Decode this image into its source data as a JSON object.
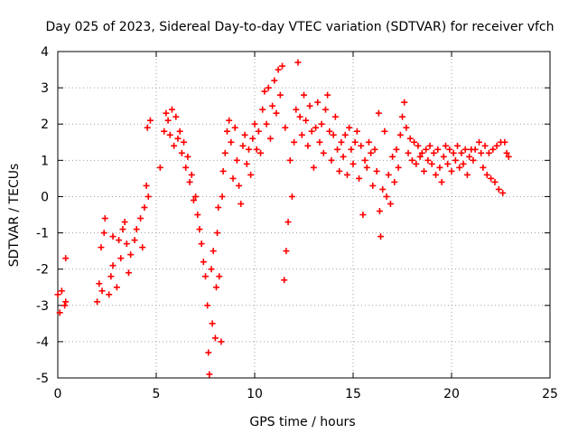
{
  "chart_data": {
    "type": "scatter",
    "title": "Day 025 of 2023, Sidereal Day-to-day VTEC variation (SDTVAR) for receiver vfch",
    "xlabel": "GPS time / hours",
    "ylabel": "SDTVAR / TECUs",
    "xlim": [
      0,
      25
    ],
    "ylim": [
      -5,
      4
    ],
    "xticks": [
      0,
      5,
      10,
      15,
      20,
      25
    ],
    "yticks": [
      -5,
      -4,
      -3,
      -2,
      -1,
      0,
      1,
      2,
      3,
      4
    ],
    "grid": true,
    "marker": "+",
    "color": "#ff0000",
    "series": [
      {
        "name": "SDTVAR",
        "points": [
          [
            0.0,
            -2.7
          ],
          [
            0.1,
            -3.2
          ],
          [
            0.2,
            -2.6
          ],
          [
            0.35,
            -3.0
          ],
          [
            0.4,
            -1.7
          ],
          [
            0.4,
            -2.9
          ],
          [
            2.0,
            -2.9
          ],
          [
            2.1,
            -2.4
          ],
          [
            2.2,
            -1.4
          ],
          [
            2.25,
            -2.6
          ],
          [
            2.35,
            -1.0
          ],
          [
            2.4,
            -0.6
          ],
          [
            2.6,
            -2.7
          ],
          [
            2.7,
            -2.2
          ],
          [
            2.8,
            -1.9
          ],
          [
            2.8,
            -1.1
          ],
          [
            3.0,
            -2.5
          ],
          [
            3.1,
            -1.2
          ],
          [
            3.2,
            -1.7
          ],
          [
            3.3,
            -0.9
          ],
          [
            3.4,
            -0.7
          ],
          [
            3.5,
            -1.3
          ],
          [
            3.6,
            -2.1
          ],
          [
            3.7,
            -1.6
          ],
          [
            3.9,
            -1.2
          ],
          [
            4.0,
            -0.9
          ],
          [
            4.2,
            -0.6
          ],
          [
            4.3,
            -1.4
          ],
          [
            4.4,
            -0.3
          ],
          [
            4.5,
            0.3
          ],
          [
            4.55,
            1.9
          ],
          [
            4.6,
            0.0
          ],
          [
            4.7,
            2.1
          ],
          [
            5.2,
            0.8
          ],
          [
            5.4,
            1.8
          ],
          [
            5.5,
            2.3
          ],
          [
            5.6,
            2.1
          ],
          [
            5.7,
            1.7
          ],
          [
            5.8,
            2.4
          ],
          [
            5.9,
            1.4
          ],
          [
            6.0,
            2.2
          ],
          [
            6.1,
            1.6
          ],
          [
            6.2,
            1.8
          ],
          [
            6.3,
            1.2
          ],
          [
            6.4,
            1.5
          ],
          [
            6.5,
            0.8
          ],
          [
            6.6,
            1.1
          ],
          [
            6.7,
            0.4
          ],
          [
            6.8,
            0.6
          ],
          [
            6.9,
            -0.1
          ],
          [
            7.0,
            0.0
          ],
          [
            7.1,
            -0.5
          ],
          [
            7.2,
            -0.9
          ],
          [
            7.3,
            -1.3
          ],
          [
            7.4,
            -1.8
          ],
          [
            7.5,
            -2.2
          ],
          [
            7.6,
            -3.0
          ],
          [
            7.65,
            -4.3
          ],
          [
            7.7,
            -4.9
          ],
          [
            7.8,
            -2.0
          ],
          [
            7.85,
            -3.5
          ],
          [
            7.9,
            -1.5
          ],
          [
            8.0,
            -3.9
          ],
          [
            8.05,
            -2.5
          ],
          [
            8.1,
            -1.0
          ],
          [
            8.15,
            -0.3
          ],
          [
            8.2,
            -2.2
          ],
          [
            8.3,
            -4.0
          ],
          [
            8.35,
            0.0
          ],
          [
            8.4,
            0.7
          ],
          [
            8.5,
            1.2
          ],
          [
            8.6,
            1.8
          ],
          [
            8.7,
            2.1
          ],
          [
            8.8,
            1.5
          ],
          [
            8.9,
            0.5
          ],
          [
            9.0,
            1.9
          ],
          [
            9.1,
            1.0
          ],
          [
            9.2,
            0.3
          ],
          [
            9.3,
            -0.2
          ],
          [
            9.4,
            1.4
          ],
          [
            9.5,
            1.7
          ],
          [
            9.6,
            0.9
          ],
          [
            9.7,
            1.3
          ],
          [
            9.8,
            0.6
          ],
          [
            9.9,
            1.6
          ],
          [
            10.0,
            2.0
          ],
          [
            10.1,
            1.3
          ],
          [
            10.2,
            1.8
          ],
          [
            10.3,
            1.2
          ],
          [
            10.4,
            2.4
          ],
          [
            10.5,
            2.9
          ],
          [
            10.6,
            2.0
          ],
          [
            10.7,
            3.0
          ],
          [
            10.8,
            1.6
          ],
          [
            10.9,
            2.5
          ],
          [
            11.0,
            3.2
          ],
          [
            11.1,
            2.3
          ],
          [
            11.2,
            3.5
          ],
          [
            11.3,
            2.8
          ],
          [
            11.4,
            3.6
          ],
          [
            11.5,
            -2.3
          ],
          [
            11.55,
            1.9
          ],
          [
            11.6,
            -1.5
          ],
          [
            11.7,
            -0.7
          ],
          [
            11.8,
            1.0
          ],
          [
            11.9,
            0.0
          ],
          [
            12.0,
            1.5
          ],
          [
            12.1,
            2.4
          ],
          [
            12.2,
            3.7
          ],
          [
            12.3,
            2.2
          ],
          [
            12.4,
            1.7
          ],
          [
            12.5,
            2.8
          ],
          [
            12.6,
            2.1
          ],
          [
            12.7,
            1.4
          ],
          [
            12.8,
            2.5
          ],
          [
            12.9,
            1.8
          ],
          [
            13.0,
            0.8
          ],
          [
            13.1,
            1.9
          ],
          [
            13.2,
            2.6
          ],
          [
            13.3,
            1.5
          ],
          [
            13.4,
            2.0
          ],
          [
            13.5,
            1.2
          ],
          [
            13.6,
            2.4
          ],
          [
            13.7,
            2.8
          ],
          [
            13.8,
            1.8
          ],
          [
            13.9,
            1.0
          ],
          [
            14.0,
            1.7
          ],
          [
            14.1,
            2.2
          ],
          [
            14.2,
            1.3
          ],
          [
            14.3,
            0.7
          ],
          [
            14.4,
            1.5
          ],
          [
            14.5,
            1.1
          ],
          [
            14.6,
            1.7
          ],
          [
            14.7,
            0.6
          ],
          [
            14.8,
            1.9
          ],
          [
            14.9,
            1.3
          ],
          [
            15.0,
            0.9
          ],
          [
            15.1,
            1.5
          ],
          [
            15.2,
            1.8
          ],
          [
            15.3,
            0.5
          ],
          [
            15.4,
            1.4
          ],
          [
            15.5,
            -0.5
          ],
          [
            15.6,
            1.0
          ],
          [
            15.7,
            0.8
          ],
          [
            15.8,
            1.5
          ],
          [
            15.9,
            1.2
          ],
          [
            16.0,
            0.3
          ],
          [
            16.1,
            1.3
          ],
          [
            16.2,
            0.7
          ],
          [
            16.3,
            2.3
          ],
          [
            16.35,
            -0.4
          ],
          [
            16.4,
            -1.1
          ],
          [
            16.5,
            0.2
          ],
          [
            16.6,
            1.8
          ],
          [
            16.7,
            0.0
          ],
          [
            16.8,
            0.6
          ],
          [
            16.9,
            -0.2
          ],
          [
            17.0,
            1.1
          ],
          [
            17.1,
            0.4
          ],
          [
            17.2,
            1.3
          ],
          [
            17.3,
            0.8
          ],
          [
            17.4,
            1.7
          ],
          [
            17.5,
            2.2
          ],
          [
            17.6,
            2.6
          ],
          [
            17.7,
            1.9
          ],
          [
            17.8,
            1.2
          ],
          [
            17.9,
            1.6
          ],
          [
            18.0,
            1.0
          ],
          [
            18.1,
            1.5
          ],
          [
            18.2,
            0.9
          ],
          [
            18.3,
            1.4
          ],
          [
            18.4,
            1.1
          ],
          [
            18.5,
            1.2
          ],
          [
            18.6,
            0.7
          ],
          [
            18.7,
            1.3
          ],
          [
            18.8,
            1.0
          ],
          [
            18.9,
            1.4
          ],
          [
            19.0,
            0.9
          ],
          [
            19.1,
            1.2
          ],
          [
            19.2,
            0.6
          ],
          [
            19.3,
            1.3
          ],
          [
            19.4,
            0.8
          ],
          [
            19.5,
            0.4
          ],
          [
            19.6,
            1.1
          ],
          [
            19.7,
            1.4
          ],
          [
            19.8,
            0.9
          ],
          [
            19.9,
            1.3
          ],
          [
            20.0,
            0.7
          ],
          [
            20.1,
            1.2
          ],
          [
            20.2,
            1.0
          ],
          [
            20.3,
            1.4
          ],
          [
            20.4,
            0.8
          ],
          [
            20.5,
            1.2
          ],
          [
            20.6,
            0.9
          ],
          [
            20.7,
            1.3
          ],
          [
            20.8,
            0.6
          ],
          [
            20.9,
            1.1
          ],
          [
            21.0,
            1.3
          ],
          [
            21.1,
            1.0
          ],
          [
            21.2,
            1.3
          ],
          [
            21.4,
            1.5
          ],
          [
            21.5,
            1.2
          ],
          [
            21.6,
            0.8
          ],
          [
            21.7,
            1.4
          ],
          [
            21.8,
            0.6
          ],
          [
            21.9,
            1.2
          ],
          [
            22.0,
            0.5
          ],
          [
            22.1,
            1.3
          ],
          [
            22.2,
            0.4
          ],
          [
            22.3,
            1.4
          ],
          [
            22.4,
            0.2
          ],
          [
            22.5,
            1.5
          ],
          [
            22.6,
            0.1
          ],
          [
            22.7,
            1.5
          ],
          [
            22.8,
            1.2
          ],
          [
            22.9,
            1.1
          ]
        ]
      }
    ]
  }
}
